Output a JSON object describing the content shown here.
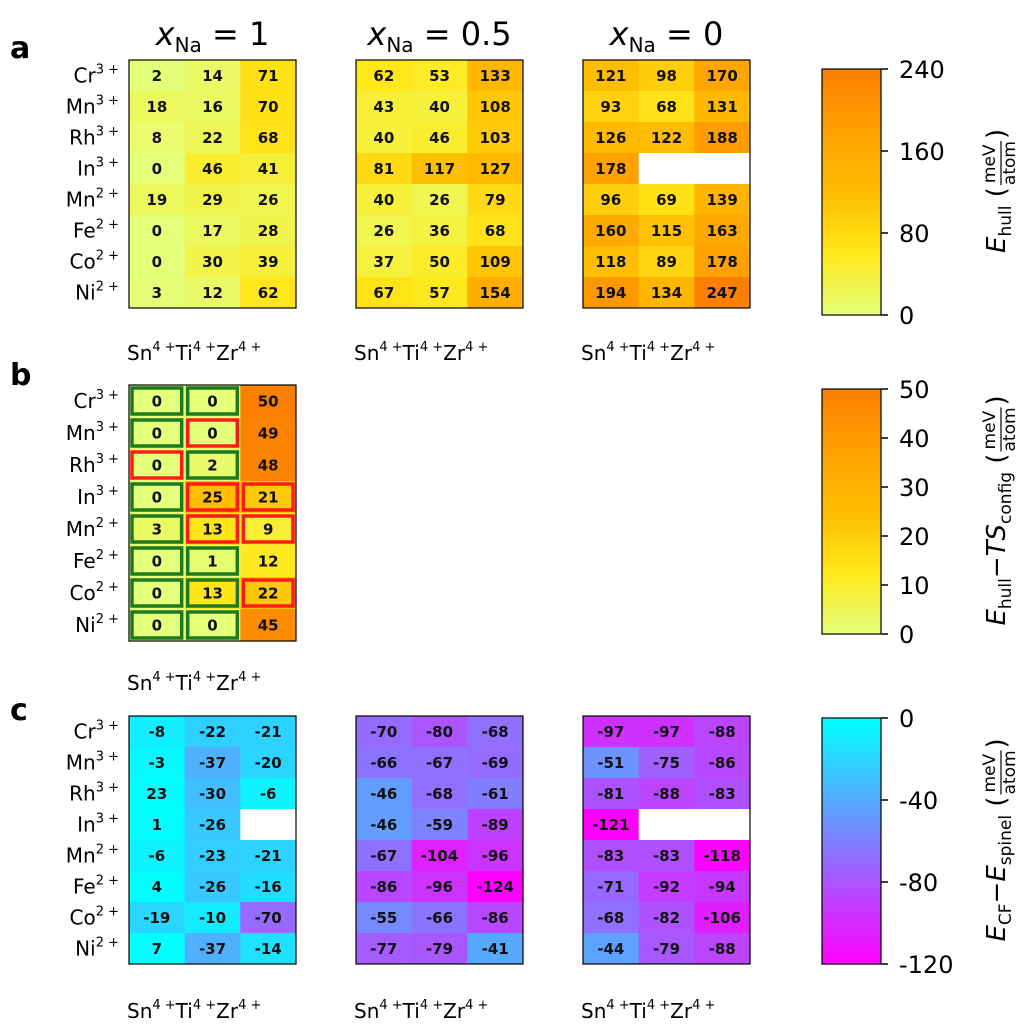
{
  "chart_data": [
    {
      "type": "heatmap",
      "panel": "a",
      "row_labels": [
        {
          "base": "Cr",
          "sup": "3 +"
        },
        {
          "base": "Mn",
          "sup": "3 +"
        },
        {
          "base": "Rh",
          "sup": "3 +"
        },
        {
          "base": "In",
          "sup": "3 +"
        },
        {
          "base": "Mn",
          "sup": "2 +"
        },
        {
          "base": "Fe",
          "sup": "2 +"
        },
        {
          "base": "Co",
          "sup": "2 +"
        },
        {
          "base": "Ni",
          "sup": "2 +"
        }
      ],
      "col_labels": [
        {
          "base": "Sn",
          "sup": "4 +"
        },
        {
          "base": "Ti",
          "sup": "4 +"
        },
        {
          "base": "Zr",
          "sup": "4 +"
        }
      ],
      "colorbar": {
        "colormap": "Wistia",
        "ticks": [
          "240",
          "160",
          "80",
          "0"
        ],
        "vmin": 0,
        "vmax": 240,
        "label": {
          "main": "E",
          "sub": "hull",
          "unit_num": "meV",
          "unit_den": "atom"
        }
      },
      "subplots": [
        {
          "heading": {
            "var": "x",
            "sub": "Na",
            "rest": " = 1"
          },
          "values": [
            [
              2,
              14,
              71
            ],
            [
              18,
              16,
              70
            ],
            [
              8,
              22,
              68
            ],
            [
              0,
              46,
              41
            ],
            [
              19,
              29,
              26
            ],
            [
              0,
              17,
              28
            ],
            [
              0,
              30,
              39
            ],
            [
              3,
              12,
              62
            ]
          ]
        },
        {
          "heading": {
            "var": "x",
            "sub": "Na",
            "rest": " = 0.5"
          },
          "values": [
            [
              62,
              53,
              133
            ],
            [
              43,
              40,
              108
            ],
            [
              40,
              46,
              103
            ],
            [
              81,
              117,
              127
            ],
            [
              40,
              26,
              79
            ],
            [
              26,
              36,
              68
            ],
            [
              37,
              50,
              109
            ],
            [
              67,
              57,
              154
            ]
          ]
        },
        {
          "heading": {
            "var": "x",
            "sub": "Na",
            "rest": " = 0"
          },
          "values": [
            [
              121,
              98,
              170
            ],
            [
              93,
              68,
              131
            ],
            [
              126,
              122,
              188
            ],
            [
              178,
              null,
              null
            ],
            [
              96,
              69,
              139
            ],
            [
              160,
              115,
              163
            ],
            [
              118,
              89,
              178
            ],
            [
              194,
              134,
              247
            ]
          ]
        }
      ]
    },
    {
      "type": "heatmap",
      "panel": "b",
      "row_labels": [
        {
          "base": "Cr",
          "sup": "3 +"
        },
        {
          "base": "Mn",
          "sup": "3 +"
        },
        {
          "base": "Rh",
          "sup": "3 +"
        },
        {
          "base": "In",
          "sup": "3 +"
        },
        {
          "base": "Mn",
          "sup": "2 +"
        },
        {
          "base": "Fe",
          "sup": "2 +"
        },
        {
          "base": "Co",
          "sup": "2 +"
        },
        {
          "base": "Ni",
          "sup": "2 +"
        }
      ],
      "col_labels": [
        {
          "base": "Sn",
          "sup": "4 +"
        },
        {
          "base": "Ti",
          "sup": "4 +"
        },
        {
          "base": "Zr",
          "sup": "4 +"
        }
      ],
      "colorbar": {
        "colormap": "Wistia",
        "ticks": [
          "50",
          "40",
          "30",
          "20",
          "10",
          "0"
        ],
        "vmin": 0,
        "vmax": 50,
        "label": {
          "main1": "E",
          "sub1": "hull",
          "minus": "−",
          "main2": "TS",
          "sub2": "config",
          "unit_num": "meV",
          "unit_den": "atom"
        }
      },
      "subplots": [
        {
          "values": [
            [
              0,
              0,
              50
            ],
            [
              0,
              0,
              49
            ],
            [
              0,
              2,
              48
            ],
            [
              0,
              25,
              21
            ],
            [
              3,
              13,
              9
            ],
            [
              0,
              1,
              12
            ],
            [
              0,
              13,
              22
            ],
            [
              0,
              0,
              45
            ]
          ],
          "outline": [
            [
              "green",
              "green",
              null
            ],
            [
              "green",
              "red",
              null
            ],
            [
              "red",
              "green",
              null
            ],
            [
              "green",
              "red",
              "red"
            ],
            [
              "green",
              "red",
              "red"
            ],
            [
              "green",
              "green",
              null
            ],
            [
              "green",
              "green",
              "red"
            ],
            [
              "green",
              "green",
              null
            ]
          ]
        }
      ]
    },
    {
      "type": "heatmap",
      "panel": "c",
      "row_labels": [
        {
          "base": "Cr",
          "sup": "3 +"
        },
        {
          "base": "Mn",
          "sup": "3 +"
        },
        {
          "base": "Rh",
          "sup": "3 +"
        },
        {
          "base": "In",
          "sup": "3 +"
        },
        {
          "base": "Mn",
          "sup": "2 +"
        },
        {
          "base": "Fe",
          "sup": "2 +"
        },
        {
          "base": "Co",
          "sup": "2 +"
        },
        {
          "base": "Ni",
          "sup": "2 +"
        }
      ],
      "col_labels": [
        {
          "base": "Sn",
          "sup": "4 +"
        },
        {
          "base": "Ti",
          "sup": "4 +"
        },
        {
          "base": "Zr",
          "sup": "4 +"
        }
      ],
      "colorbar": {
        "colormap": "cool",
        "ticks": [
          "0",
          "-40",
          "-80",
          "-120"
        ],
        "vmin": -120,
        "vmax": 0,
        "label": {
          "main1": "E",
          "sub1": "CF",
          "minus": "−",
          "main2": "E",
          "sub2": "spinel",
          "unit_num": "meV",
          "unit_den": "atom"
        }
      },
      "subplots": [
        {
          "values": [
            [
              -8,
              -22,
              -21
            ],
            [
              -3,
              -37,
              -20
            ],
            [
              23,
              -30,
              -6
            ],
            [
              1,
              -26,
              null
            ],
            [
              -6,
              -23,
              -21
            ],
            [
              4,
              -26,
              -16
            ],
            [
              -19,
              -10,
              -70
            ],
            [
              7,
              -37,
              -14
            ]
          ]
        },
        {
          "values": [
            [
              -70,
              -80,
              -68
            ],
            [
              -66,
              -67,
              -69
            ],
            [
              -46,
              -68,
              -61
            ],
            [
              -46,
              -59,
              -89
            ],
            [
              -67,
              -104,
              -96
            ],
            [
              -86,
              -96,
              -124
            ],
            [
              -55,
              -66,
              -86
            ],
            [
              -77,
              -79,
              -41
            ]
          ]
        },
        {
          "values": [
            [
              -97,
              -97,
              -88
            ],
            [
              -51,
              -75,
              -86
            ],
            [
              -81,
              -88,
              -83
            ],
            [
              -121,
              null,
              null
            ],
            [
              -83,
              -83,
              -118
            ],
            [
              -71,
              -92,
              -94
            ],
            [
              -68,
              -82,
              -106
            ],
            [
              -44,
              -79,
              -88
            ]
          ]
        }
      ]
    }
  ],
  "colors": {
    "outline_green": "#1f7a1f",
    "outline_red": "#ff1a1a"
  }
}
